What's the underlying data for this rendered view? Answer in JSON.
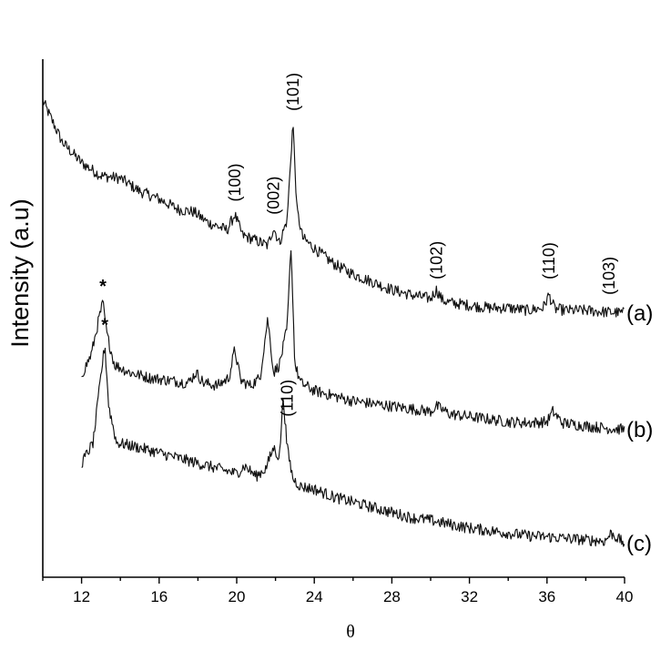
{
  "chart_data": {
    "type": "line",
    "title": "",
    "xlabel": "θ",
    "ylabel": "Intensity (a.u)",
    "xlim": [
      10,
      40
    ],
    "ylim": [
      0,
      10
    ],
    "x_ticks": [
      12,
      16,
      20,
      24,
      28,
      32,
      36,
      40
    ],
    "grid": false,
    "legend": "none",
    "series": [
      {
        "name": "(a)",
        "x": [
          10,
          11,
          12,
          13,
          14,
          15,
          16,
          17,
          17.8,
          18.5,
          19.5,
          19.9,
          20.3,
          21,
          21.6,
          21.9,
          22.2,
          22.6,
          22.9,
          23.1,
          23.4,
          24,
          25,
          26,
          27,
          28,
          29,
          30,
          30.3,
          30.6,
          31,
          32,
          33,
          34,
          35,
          35.8,
          36.1,
          36.4,
          37,
          38,
          39,
          40
        ],
        "y": [
          9.2,
          8.4,
          8.0,
          7.75,
          7.7,
          7.45,
          7.3,
          7.1,
          7.05,
          6.85,
          6.7,
          7.0,
          6.6,
          6.5,
          6.4,
          6.75,
          6.45,
          6.9,
          8.8,
          7.1,
          6.55,
          6.35,
          6.05,
          5.85,
          5.7,
          5.55,
          5.45,
          5.38,
          5.55,
          5.35,
          5.3,
          5.25,
          5.2,
          5.2,
          5.15,
          5.2,
          5.45,
          5.18,
          5.15,
          5.15,
          5.12,
          5.1
        ]
      },
      {
        "name": "(b)",
        "x": [
          12,
          12.5,
          12.9,
          13.1,
          13.3,
          13.7,
          14.5,
          15.5,
          16.5,
          17.5,
          17.9,
          18.3,
          19,
          19.6,
          19.9,
          20.2,
          20.7,
          21.2,
          21.6,
          21.9,
          22.2,
          22.6,
          22.8,
          23.0,
          23.3,
          24,
          25,
          26,
          27,
          28,
          29,
          30,
          30.3,
          31,
          32,
          33,
          34,
          35,
          36,
          36.3,
          36.8,
          38,
          39,
          40
        ],
        "y": [
          3.9,
          4.3,
          5.0,
          5.3,
          4.7,
          4.1,
          3.95,
          3.85,
          3.8,
          3.75,
          3.95,
          3.75,
          3.7,
          3.85,
          4.4,
          3.8,
          3.7,
          3.85,
          5.0,
          3.95,
          4.1,
          4.8,
          6.4,
          4.1,
          3.75,
          3.6,
          3.5,
          3.4,
          3.35,
          3.3,
          3.25,
          3.2,
          3.3,
          3.15,
          3.1,
          3.05,
          3.0,
          2.98,
          3.0,
          3.2,
          2.98,
          2.92,
          2.88,
          2.85
        ]
      },
      {
        "name": "(c)",
        "x": [
          12,
          12.6,
          13.0,
          13.2,
          13.4,
          13.8,
          15,
          16,
          17,
          18,
          19,
          19.5,
          20,
          20.4,
          21,
          21.5,
          21.9,
          22.2,
          22.4,
          22.6,
          22.9,
          23.3,
          24,
          25,
          26,
          27,
          28,
          29,
          30,
          31,
          32,
          33,
          34,
          35,
          36,
          37,
          38,
          39,
          39.3,
          40
        ],
        "y": [
          2.2,
          2.6,
          3.9,
          4.5,
          3.3,
          2.6,
          2.5,
          2.4,
          2.3,
          2.2,
          2.1,
          2.05,
          2.0,
          2.15,
          1.95,
          2.1,
          2.5,
          2.3,
          3.5,
          2.5,
          1.9,
          1.75,
          1.7,
          1.55,
          1.45,
          1.35,
          1.25,
          1.15,
          1.1,
          1.02,
          0.95,
          0.9,
          0.85,
          0.8,
          0.78,
          0.75,
          0.72,
          0.7,
          0.85,
          0.65
        ]
      }
    ],
    "annotations": {
      "peak_labels": [
        {
          "text": "(100)",
          "x": 19.9,
          "y": 7.25
        },
        {
          "text": "(002)",
          "x": 21.9,
          "y": 7.0
        },
        {
          "text": "(101)",
          "x": 22.9,
          "y": 9.0
        },
        {
          "text": "(102)",
          "x": 30.3,
          "y": 5.75
        },
        {
          "text": "(110)",
          "x": 36.1,
          "y": 5.75
        },
        {
          "text": "(103)",
          "x": 39.2,
          "y": 5.45
        },
        {
          "text": "(110)",
          "x": 22.6,
          "y": 3.1
        }
      ],
      "stars": [
        {
          "text": "*",
          "x": 13.1,
          "y": 5.5
        },
        {
          "text": "*",
          "x": 13.2,
          "y": 4.75
        }
      ],
      "series_labels": [
        {
          "text": "(a)",
          "y": 5.1
        },
        {
          "text": "(b)",
          "y": 2.85
        },
        {
          "text": "(c)",
          "y": 0.65
        }
      ]
    }
  }
}
